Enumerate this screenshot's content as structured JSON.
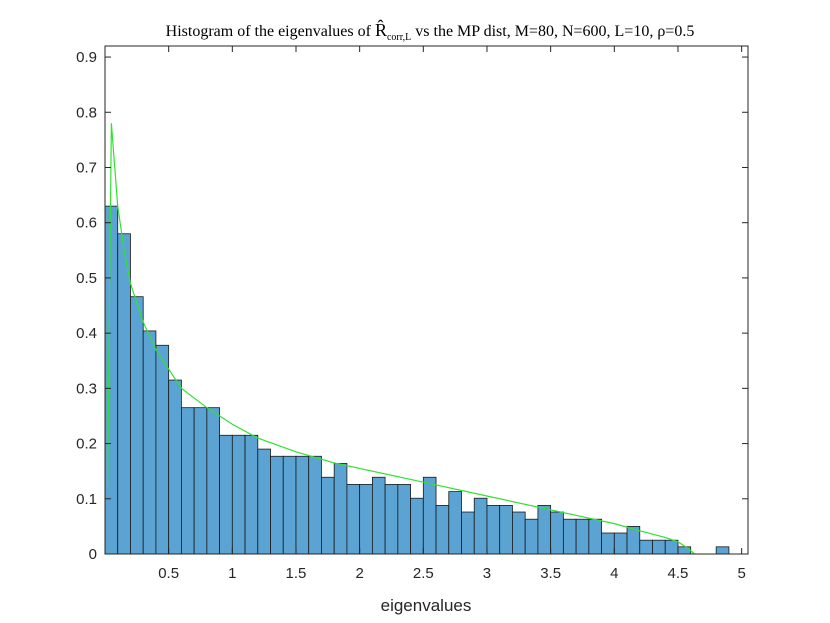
{
  "chart_data": {
    "type": "bar",
    "title": {
      "prefix": "Histogram of the eigenvalues of ",
      "symbol": "R̂",
      "symbol_subscript": "corr,L",
      "suffix": " vs the MP dist, M=80, N=600, L=10, ρ=0.5"
    },
    "xlabel": "eigenvalues",
    "ylabel": "",
    "xlim": [
      0.0,
      5.05
    ],
    "ylim": [
      0,
      0.92
    ],
    "x_ticks": [
      0.5,
      1,
      1.5,
      2,
      2.5,
      3,
      3.5,
      4,
      4.5,
      5
    ],
    "x_tick_labels": [
      "0.5",
      "1",
      "1.5",
      "2",
      "2.5",
      "3",
      "3.5",
      "4",
      "4.5",
      "5"
    ],
    "y_ticks": [
      0,
      0.1,
      0.2,
      0.3,
      0.4,
      0.5,
      0.6,
      0.7,
      0.8,
      0.9
    ],
    "y_tick_labels": [
      "0",
      "0.1",
      "0.2",
      "0.3",
      "0.4",
      "0.5",
      "0.6",
      "0.7",
      "0.8",
      "0.9"
    ],
    "grid": false,
    "legend": "none",
    "bin_start": 0.0,
    "bin_width": 0.1,
    "values": [
      0.63,
      0.58,
      0.466,
      0.404,
      0.378,
      0.315,
      0.265,
      0.265,
      0.265,
      0.215,
      0.215,
      0.215,
      0.19,
      0.177,
      0.177,
      0.177,
      0.177,
      0.139,
      0.164,
      0.126,
      0.126,
      0.139,
      0.126,
      0.126,
      0.101,
      0.139,
      0.088,
      0.113,
      0.076,
      0.101,
      0.088,
      0.088,
      0.076,
      0.063,
      0.088,
      0.076,
      0.063,
      0.063,
      0.063,
      0.038,
      0.038,
      0.05,
      0.025,
      0.025,
      0.025,
      0.013,
      0.0,
      0.0,
      0.013
    ],
    "mp_curve": {
      "x": [
        0.02,
        0.05,
        0.1,
        0.15,
        0.2,
        0.3,
        0.4,
        0.5,
        0.6,
        0.8,
        1.0,
        1.2,
        1.5,
        1.8,
        2.0,
        2.5,
        3.0,
        3.5,
        4.0,
        4.2,
        4.4,
        4.5,
        4.58,
        4.63
      ],
      "y": [
        0.12,
        0.78,
        0.63,
        0.55,
        0.49,
        0.42,
        0.37,
        0.335,
        0.3,
        0.265,
        0.235,
        0.21,
        0.185,
        0.165,
        0.155,
        0.13,
        0.105,
        0.08,
        0.055,
        0.042,
        0.03,
        0.022,
        0.01,
        0.0
      ]
    },
    "colors": {
      "bar_fill": "#5BA3D3",
      "bar_edge": "#1a1a1a",
      "curve": "#33e033",
      "axis": "#262626"
    }
  }
}
